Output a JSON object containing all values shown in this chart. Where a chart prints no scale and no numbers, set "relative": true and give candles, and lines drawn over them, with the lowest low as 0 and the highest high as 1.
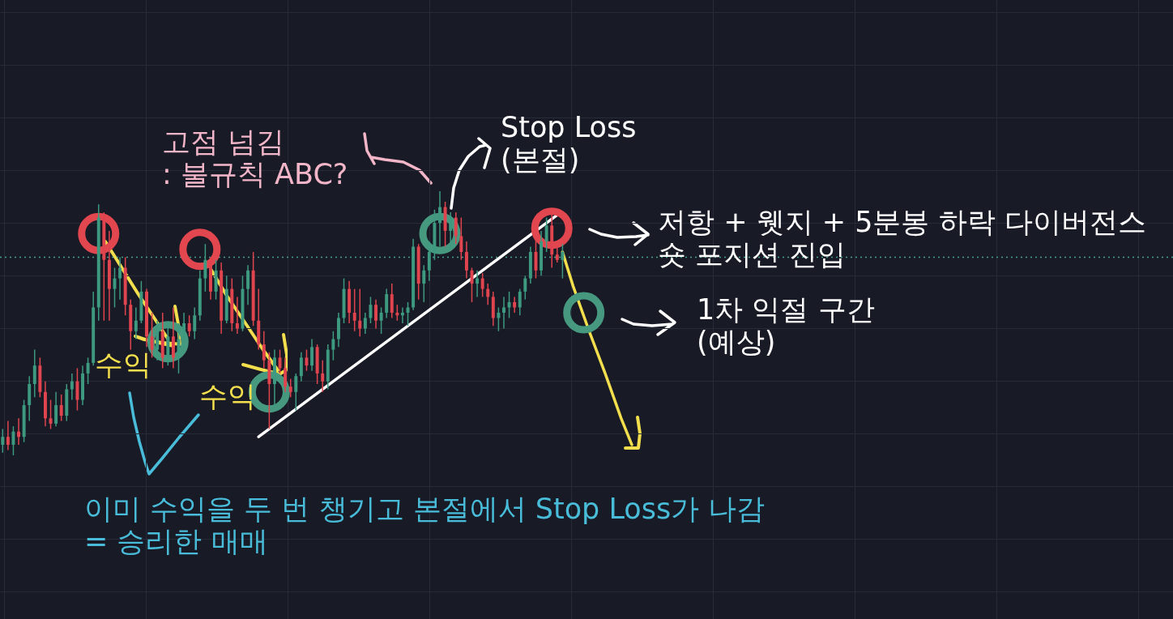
{
  "chart_data": {
    "type": "candlestick",
    "relative": true,
    "grid": true,
    "tick_labels": false,
    "categories": [
      null,
      null,
      null,
      null,
      null,
      null,
      null,
      null,
      null,
      null,
      null,
      null,
      null,
      null,
      null,
      null,
      null,
      null,
      null,
      null,
      null,
      null,
      null,
      null,
      null,
      null,
      null,
      null,
      null,
      null,
      null,
      null,
      null,
      null,
      null,
      null,
      null,
      null,
      null,
      null,
      null,
      null,
      null,
      null,
      null,
      null,
      null,
      null,
      null,
      null,
      null,
      null,
      null,
      null,
      null,
      null,
      null,
      null,
      null,
      null,
      null,
      null,
      null,
      null,
      null,
      null,
      null,
      null,
      null,
      null,
      null,
      null,
      null,
      null,
      null,
      null,
      null,
      null,
      null,
      null,
      null,
      null,
      null,
      null,
      null,
      null,
      null,
      null,
      null,
      null,
      null,
      null,
      null,
      null,
      null,
      null,
      null,
      null,
      null,
      null,
      null,
      null,
      null,
      null,
      null,
      null,
      null,
      null,
      null,
      null,
      null,
      null,
      null,
      null,
      null,
      null,
      null,
      null,
      null,
      null,
      null,
      null,
      null,
      null,
      null,
      null,
      null,
      null,
      null,
      null,
      null,
      null,
      null,
      null,
      null,
      null,
      null,
      null,
      null,
      null,
      null,
      null,
      null,
      null,
      null,
      null,
      null,
      null,
      null,
      null,
      null,
      null,
      null,
      null,
      null,
      null,
      null,
      null,
      null,
      null,
      null,
      null,
      null,
      null,
      null,
      null,
      null,
      null,
      null,
      null,
      null,
      null,
      null,
      null,
      null,
      null,
      null,
      null,
      null,
      null,
      null,
      null,
      null,
      null,
      null,
      null,
      null,
      null,
      null,
      null,
      null,
      null,
      null,
      null,
      null,
      null,
      null,
      null,
      null,
      null,
      null,
      null,
      null,
      null,
      null,
      null,
      null,
      null,
      null,
      null,
      null,
      null,
      null,
      null,
      null,
      null,
      null,
      null,
      null,
      null
    ],
    "ohlc": [
      [
        0.04,
        0.1,
        0.01,
        0.07
      ],
      [
        0.07,
        0.13,
        0.02,
        0.04
      ],
      [
        0.04,
        0.11,
        0,
        0.09
      ],
      [
        0.09,
        0.14,
        0.04,
        0.07
      ],
      [
        0.07,
        0.21,
        0.05,
        0.19
      ],
      [
        0.19,
        0.3,
        0.13,
        0.27
      ],
      [
        0.27,
        0.4,
        0.22,
        0.34
      ],
      [
        0.34,
        0.37,
        0.22,
        0.24
      ],
      [
        0.24,
        0.28,
        0.11,
        0.14
      ],
      [
        0.14,
        0.21,
        0.1,
        0.12
      ],
      [
        0.12,
        0.24,
        0.11,
        0.19
      ],
      [
        0.19,
        0.23,
        0.13,
        0.15
      ],
      [
        0.15,
        0.27,
        0.13,
        0.25
      ],
      [
        0.25,
        0.31,
        0.21,
        0.28
      ],
      [
        0.28,
        0.33,
        0.17,
        0.21
      ],
      [
        0.21,
        0.34,
        0.19,
        0.31
      ],
      [
        0.31,
        0.37,
        0.27,
        0.35
      ],
      [
        0.35,
        0.62,
        0.34,
        0.56
      ],
      [
        0.56,
        0.95,
        0.51,
        0.9
      ],
      [
        0.9,
        0.92,
        0.51,
        0.74
      ],
      [
        0.74,
        0.85,
        0.51,
        0.63
      ],
      [
        0.63,
        0.71,
        0.56,
        0.67
      ],
      [
        0.67,
        0.75,
        0.59,
        0.71
      ],
      [
        0.71,
        0.75,
        0.53,
        0.57
      ],
      [
        0.57,
        0.59,
        0.4,
        0.47
      ],
      [
        0.47,
        0.56,
        0.44,
        0.51
      ],
      [
        0.51,
        0.66,
        0.5,
        0.62
      ],
      [
        0.62,
        0.63,
        0.41,
        0.45
      ],
      [
        0.45,
        0.54,
        0.37,
        0.4
      ],
      [
        0.4,
        0.51,
        0.36,
        0.47
      ],
      [
        0.47,
        0.54,
        0.33,
        0.37
      ],
      [
        0.37,
        0.5,
        0.34,
        0.45
      ],
      [
        0.45,
        0.56,
        0.33,
        0.37
      ],
      [
        0.37,
        0.5,
        0.31,
        0.44
      ],
      [
        0.44,
        0.54,
        0.4,
        0.5
      ],
      [
        0.5,
        0.53,
        0.45,
        0.47
      ],
      [
        0.47,
        0.56,
        0.44,
        0.53
      ],
      [
        0.53,
        0.7,
        0.51,
        0.67
      ],
      [
        0.67,
        0.8,
        0.62,
        0.74
      ],
      [
        0.74,
        0.75,
        0.59,
        0.62
      ],
      [
        0.62,
        0.74,
        0.59,
        0.7
      ],
      [
        0.7,
        0.73,
        0.46,
        0.51
      ],
      [
        0.51,
        0.68,
        0.5,
        0.63
      ],
      [
        0.63,
        0.67,
        0.47,
        0.5
      ],
      [
        0.5,
        0.6,
        0.46,
        0.48
      ],
      [
        0.48,
        0.68,
        0.47,
        0.63
      ],
      [
        0.63,
        0.72,
        0.57,
        0.7
      ],
      [
        0.7,
        0.77,
        0.49,
        0.51
      ],
      [
        0.51,
        0.63,
        0.4,
        0.42
      ],
      [
        0.42,
        0.47,
        0.33,
        0.36
      ],
      [
        0.36,
        0.39,
        0.1,
        0.27
      ],
      [
        0.27,
        0.4,
        0.19,
        0.37
      ],
      [
        0.37,
        0.4,
        0.31,
        0.33
      ],
      [
        0.33,
        0.37,
        0.24,
        0.26
      ],
      [
        0.26,
        0.29,
        0.22,
        0.24
      ],
      [
        0.24,
        0.31,
        0.17,
        0.3
      ],
      [
        0.3,
        0.39,
        0.28,
        0.37
      ],
      [
        0.37,
        0.4,
        0.32,
        0.34
      ],
      [
        0.34,
        0.44,
        0.32,
        0.41
      ],
      [
        0.41,
        0.42,
        0.27,
        0.31
      ],
      [
        0.31,
        0.36,
        0.24,
        0.28
      ],
      [
        0.28,
        0.42,
        0.25,
        0.4
      ],
      [
        0.4,
        0.47,
        0.36,
        0.44
      ],
      [
        0.44,
        0.54,
        0.41,
        0.52
      ],
      [
        0.52,
        0.67,
        0.5,
        0.63
      ],
      [
        0.63,
        0.66,
        0.5,
        0.54
      ],
      [
        0.54,
        0.63,
        0.47,
        0.51
      ],
      [
        0.51,
        0.63,
        0.45,
        0.48
      ],
      [
        0.48,
        0.54,
        0.46,
        0.52
      ],
      [
        0.52,
        0.6,
        0.5,
        0.57
      ],
      [
        0.57,
        0.59,
        0.48,
        0.51
      ],
      [
        0.51,
        0.56,
        0.46,
        0.54
      ],
      [
        0.54,
        0.63,
        0.52,
        0.61
      ],
      [
        0.61,
        0.65,
        0.52,
        0.54
      ],
      [
        0.54,
        0.57,
        0.51,
        0.53
      ],
      [
        0.53,
        0.56,
        0.5,
        0.54
      ],
      [
        0.54,
        0.58,
        0.49,
        0.56
      ],
      [
        0.56,
        0.82,
        0.55,
        0.79
      ],
      [
        0.79,
        0.8,
        0.59,
        0.65
      ],
      [
        0.65,
        0.72,
        0.58,
        0.7
      ],
      [
        0.7,
        0.81,
        0.66,
        0.77
      ],
      [
        0.77,
        0.93,
        0.74,
        0.88
      ],
      [
        0.88,
        1,
        0.79,
        0.94
      ],
      [
        0.94,
        0.96,
        0.79,
        0.85
      ],
      [
        0.85,
        0.92,
        0.78,
        0.9
      ],
      [
        0.9,
        0.92,
        0.8,
        0.83
      ],
      [
        0.83,
        0.9,
        0.74,
        0.77
      ],
      [
        0.77,
        0.81,
        0.67,
        0.7
      ],
      [
        0.7,
        0.71,
        0.58,
        0.65
      ],
      [
        0.65,
        0.7,
        0.6,
        0.67
      ],
      [
        0.67,
        0.69,
        0.6,
        0.63
      ],
      [
        0.63,
        0.65,
        0.57,
        0.6
      ],
      [
        0.6,
        0.62,
        0.49,
        0.52
      ],
      [
        0.52,
        0.56,
        0.47,
        0.54
      ],
      [
        0.54,
        0.6,
        0.48,
        0.56
      ],
      [
        0.56,
        0.62,
        0.52,
        0.58
      ],
      [
        0.58,
        0.6,
        0.54,
        0.56
      ],
      [
        0.56,
        0.63,
        0.53,
        0.62
      ],
      [
        0.62,
        0.68,
        0.59,
        0.67
      ],
      [
        0.67,
        0.79,
        0.65,
        0.77
      ],
      [
        0.77,
        0.82,
        0.67,
        0.7
      ],
      [
        0.7,
        0.85,
        0.68,
        0.81
      ],
      [
        0.81,
        0.9,
        0.77,
        0.87
      ],
      [
        0.87,
        0.92,
        0.71,
        0.76
      ],
      [
        0.76,
        0.8,
        0.73,
        0.74
      ],
      [
        0.74,
        0.8,
        0.67,
        0.77
      ],
      null,
      null,
      null,
      null,
      null,
      null,
      null,
      null,
      null,
      null,
      null,
      null,
      null,
      null,
      null,
      null,
      null,
      null,
      null,
      null,
      null,
      null,
      null,
      null,
      null,
      null,
      null,
      null,
      null,
      null,
      null,
      null,
      null,
      null,
      null,
      null,
      null,
      null,
      null,
      null,
      null,
      null,
      null,
      null,
      null,
      null,
      null,
      null,
      null,
      null,
      null,
      null,
      null,
      null,
      null,
      null,
      null,
      null,
      null,
      null,
      null,
      null,
      null,
      null,
      null,
      null,
      null,
      null,
      null,
      null,
      null,
      null,
      null,
      null,
      null,
      null,
      null,
      null,
      null,
      null,
      null,
      null,
      null,
      null,
      null,
      null,
      null,
      null,
      null,
      null,
      null,
      null,
      null,
      null,
      null,
      null,
      null,
      null,
      null,
      null,
      null,
      null,
      null,
      null,
      null,
      null,
      null,
      null,
      null,
      null,
      null,
      null,
      null,
      null
    ],
    "colors": [
      "#3d9a80",
      "#e0454f",
      "#3d9a80",
      "#e0454f",
      "#3d9a80",
      "#3d9a80",
      "#3d9a80",
      "#e0454f",
      "#e0454f",
      "#e0454f",
      "#3d9a80",
      "#e0454f",
      "#3d9a80",
      "#3d9a80",
      "#e0454f",
      "#3d9a80",
      "#3d9a80",
      "#3d9a80",
      "#3d9a80",
      "#e0454f",
      "#e0454f",
      "#3d9a80",
      "#3d9a80",
      "#e0454f",
      "#e0454f",
      "#3d9a80",
      "#3d9a80",
      "#e0454f",
      "#e0454f",
      "#3d9a80",
      "#e0454f",
      "#3d9a80",
      "#e0454f",
      "#3d9a80",
      "#3d9a80",
      "#e0454f",
      "#3d9a80",
      "#3d9a80",
      "#3d9a80",
      "#e0454f",
      "#3d9a80",
      "#e0454f",
      "#3d9a80",
      "#e0454f",
      "#e0454f",
      "#3d9a80",
      "#3d9a80",
      "#e0454f",
      "#e0454f",
      "#e0454f",
      "#e0454f",
      "#3d9a80",
      "#e0454f",
      "#e0454f",
      "#e0454f",
      "#3d9a80",
      "#3d9a80",
      "#e0454f",
      "#3d9a80",
      "#e0454f",
      "#e0454f",
      "#3d9a80",
      "#3d9a80",
      "#3d9a80",
      "#3d9a80",
      "#e0454f",
      "#e0454f",
      "#e0454f",
      "#3d9a80",
      "#3d9a80",
      "#e0454f",
      "#3d9a80",
      "#3d9a80",
      "#e0454f",
      "#e0454f",
      "#3d9a80",
      "#3d9a80",
      "#3d9a80",
      "#e0454f",
      "#3d9a80",
      "#3d9a80",
      "#3d9a80",
      "#3d9a80",
      "#e0454f",
      "#3d9a80",
      "#e0454f",
      "#e0454f",
      "#e0454f",
      "#e0454f",
      "#3d9a80",
      "#e0454f",
      "#e0454f",
      "#e0454f",
      "#3d9a80",
      "#3d9a80",
      "#3d9a80",
      "#e0454f",
      "#3d9a80",
      "#3d9a80",
      "#3d9a80",
      "#e0454f",
      "#3d9a80",
      "#3d9a80",
      "#e0454f",
      "#e0454f",
      "#3d9a80",
      null,
      null,
      null,
      null,
      null,
      null,
      null,
      null,
      null,
      null,
      null,
      null,
      null,
      null,
      null,
      null,
      null,
      null,
      null,
      null,
      null,
      null,
      null,
      null,
      null,
      null,
      null,
      null,
      null,
      null,
      null,
      null,
      null,
      null,
      null,
      null,
      null,
      null,
      null,
      null,
      null,
      null,
      null,
      null,
      null,
      null,
      null,
      null,
      null,
      null,
      null,
      null,
      null,
      null,
      null,
      null,
      null,
      null,
      null,
      null,
      null,
      null,
      null,
      null,
      null,
      null,
      null,
      null,
      null,
      null,
      null,
      null,
      null,
      null,
      null,
      null,
      null,
      null,
      null,
      null,
      null,
      null,
      null,
      null,
      null,
      null,
      null,
      null,
      null,
      null,
      null,
      null,
      null,
      null,
      null,
      null,
      null,
      null,
      null,
      null,
      null,
      null,
      null,
      null,
      null,
      null,
      null,
      null,
      null,
      null,
      null,
      null,
      null,
      null
    ],
    "series": [
      {
        "type": "scatter",
        "color": "#e2474f",
        "marker": "circle",
        "values": [
          null,
          null,
          null,
          null,
          null,
          null,
          null,
          null,
          null,
          null,
          null,
          null,
          null,
          null,
          null,
          null,
          null,
          null,
          0.84,
          null,
          null,
          null,
          null,
          null,
          null,
          null,
          null,
          null,
          null,
          null,
          null,
          null,
          null,
          null,
          null,
          null,
          null,
          0.78,
          null,
          null,
          null,
          null,
          null,
          null,
          null,
          null,
          null,
          null,
          null,
          null,
          null,
          null,
          null,
          null,
          null,
          null,
          null,
          null,
          null,
          null,
          null,
          null,
          null,
          null,
          null,
          null,
          null,
          null,
          null,
          null,
          null,
          null,
          null,
          null,
          null,
          null,
          null,
          null,
          null,
          null,
          null,
          null,
          null,
          null,
          null,
          null,
          null,
          null,
          null,
          null,
          null,
          null,
          null,
          null,
          null,
          null,
          null,
          null,
          null,
          null,
          null,
          null,
          null,
          0.86,
          null,
          null,
          null,
          null,
          null,
          null,
          null,
          null,
          null,
          null,
          null,
          null,
          null,
          null,
          null,
          null,
          null,
          null,
          null,
          null,
          null,
          null,
          null,
          null,
          null,
          null,
          null,
          null,
          null,
          null,
          null,
          null,
          null,
          null,
          null,
          null,
          null,
          null,
          null,
          null,
          null,
          null,
          null,
          null,
          null,
          null,
          null,
          null,
          null,
          null,
          null,
          null,
          null,
          null,
          null,
          null,
          null,
          null,
          null,
          null,
          null,
          null,
          null,
          null,
          null,
          null,
          null,
          null,
          null,
          null,
          null,
          null,
          null,
          null,
          null,
          null,
          null,
          null,
          null,
          null,
          null,
          null,
          null,
          null,
          null,
          null,
          null,
          null,
          null,
          null,
          null,
          null,
          null,
          null,
          null,
          null,
          null,
          null,
          null,
          null,
          null,
          null,
          null,
          null,
          null,
          null,
          null,
          null,
          null,
          null,
          null,
          null,
          null,
          null,
          null,
          null
        ]
      },
      {
        "type": "scatter",
        "color": "#46997f",
        "marker": "circle",
        "values": [
          null,
          null,
          null,
          null,
          null,
          null,
          null,
          null,
          null,
          null,
          null,
          null,
          null,
          null,
          null,
          null,
          null,
          null,
          null,
          null,
          null,
          null,
          null,
          null,
          null,
          null,
          null,
          null,
          null,
          null,
          null,
          0.43,
          null,
          null,
          null,
          null,
          null,
          null,
          null,
          null,
          null,
          null,
          null,
          null,
          null,
          null,
          null,
          null,
          null,
          null,
          0.24,
          null,
          null,
          null,
          null,
          null,
          null,
          null,
          null,
          null,
          null,
          null,
          null,
          null,
          null,
          null,
          null,
          null,
          null,
          null,
          null,
          null,
          null,
          null,
          null,
          null,
          null,
          null,
          null,
          null,
          null,
          null,
          0.84,
          null,
          null,
          null,
          null,
          null,
          null,
          null,
          null,
          null,
          null,
          null,
          null,
          null,
          null,
          null,
          null,
          null,
          null,
          null,
          null,
          null,
          null,
          null,
          null,
          null,
          null,
          0.54,
          null,
          null,
          null,
          null,
          null,
          null,
          null,
          null,
          null,
          null,
          null,
          null,
          null,
          null,
          null,
          null,
          null,
          null,
          null,
          null,
          null,
          null,
          null,
          null,
          null,
          null,
          null,
          null,
          null,
          null,
          null,
          null,
          null,
          null,
          null,
          null,
          null,
          null,
          null,
          null,
          null,
          null,
          null,
          null,
          null,
          null,
          null,
          null,
          null,
          null,
          null,
          null,
          null,
          null,
          null,
          null,
          null,
          null,
          null,
          null,
          null,
          null,
          null,
          null,
          null,
          null,
          null,
          null,
          null,
          null,
          null,
          null,
          null,
          null,
          null,
          null,
          null,
          null,
          null,
          null,
          null,
          null,
          null,
          null,
          null,
          null,
          null,
          null,
          null,
          null,
          null,
          null,
          null,
          null,
          null,
          null,
          null,
          null,
          null,
          null,
          null,
          null,
          null,
          null,
          null,
          null,
          null,
          null,
          null,
          null
        ]
      },
      {
        "type": "line",
        "color": "#ffffff",
        "line_style": "solid",
        "values": [
          null,
          null,
          null,
          null,
          null,
          null,
          null,
          null,
          null,
          null,
          null,
          null,
          null,
          null,
          null,
          null,
          null,
          null,
          null,
          null,
          null,
          null,
          null,
          null,
          null,
          null,
          null,
          null,
          null,
          null,
          null,
          null,
          null,
          null,
          null,
          null,
          null,
          null,
          null,
          null,
          null,
          null,
          null,
          null,
          null,
          null,
          null,
          null,
          0.07,
          null,
          null,
          null,
          null,
          null,
          null,
          null,
          null,
          null,
          null,
          null,
          null,
          null,
          null,
          null,
          null,
          null,
          null,
          null,
          null,
          null,
          null,
          null,
          null,
          null,
          null,
          null,
          null,
          null,
          null,
          null,
          null,
          null,
          null,
          null,
          null,
          null,
          null,
          null,
          null,
          null,
          null,
          null,
          null,
          null,
          null,
          null,
          null,
          null,
          null,
          null,
          null,
          null,
          null,
          null,
          0.91,
          null,
          null,
          null,
          null,
          null,
          null,
          null,
          null,
          null,
          null,
          null,
          null,
          null,
          null,
          null,
          null,
          null,
          null,
          null,
          null,
          null,
          null,
          null,
          null,
          null,
          null,
          null,
          null,
          null,
          null,
          null,
          null,
          null,
          null,
          null,
          null,
          null,
          null,
          null,
          null,
          null,
          null,
          null,
          null,
          null,
          null,
          null,
          null,
          null,
          null,
          null,
          null,
          null,
          null,
          null,
          null,
          null,
          null,
          null,
          null,
          null,
          null,
          null,
          null,
          null,
          null,
          null,
          null,
          null,
          null,
          null,
          null,
          null,
          null,
          null,
          null,
          null,
          null,
          null,
          null,
          null,
          null,
          null,
          null,
          null,
          null,
          null,
          null,
          null,
          null,
          null,
          null,
          null,
          null,
          null,
          null,
          null,
          null,
          null,
          null,
          null,
          null,
          null,
          null,
          null,
          null,
          null,
          null,
          null,
          null,
          null,
          null,
          null,
          null,
          null
        ]
      },
      {
        "type": "line",
        "color": "#f3df4d",
        "line_style": "solid",
        "values": [
          null,
          null,
          null,
          null,
          null,
          null,
          null,
          null,
          null,
          null,
          null,
          null,
          null,
          null,
          null,
          null,
          null,
          null,
          null,
          null,
          null,
          null,
          null,
          null,
          null,
          null,
          null,
          null,
          null,
          null,
          null,
          null,
          null,
          null,
          null,
          null,
          null,
          null,
          null,
          null,
          null,
          null,
          null,
          null,
          null,
          null,
          null,
          null,
          null,
          null,
          null,
          null,
          null,
          null,
          null,
          null,
          null,
          null,
          null,
          null,
          null,
          null,
          null,
          null,
          null,
          null,
          null,
          null,
          null,
          null,
          null,
          null,
          null,
          null,
          null,
          null,
          null,
          null,
          null,
          null,
          null,
          null,
          null,
          null,
          null,
          null,
          null,
          null,
          null,
          null,
          null,
          null,
          null,
          null,
          null,
          null,
          null,
          null,
          null,
          null,
          null,
          null,
          null,
          null,
          null,
          0.77,
          null,
          0.64,
          null,
          null,
          0.47,
          null,
          null,
          0.31,
          null,
          null,
          0.14,
          null,
          0.04,
          null,
          null,
          null,
          null,
          null,
          null,
          null,
          null,
          null,
          null,
          null,
          null,
          null,
          null,
          null,
          null,
          null,
          null,
          null,
          null,
          null,
          null,
          null,
          null,
          null,
          null,
          null,
          null,
          null,
          null,
          null,
          null,
          null,
          null,
          null,
          null,
          null,
          null,
          null,
          null,
          null,
          null,
          null,
          null,
          null,
          null,
          null,
          null,
          null,
          null,
          null,
          null,
          null,
          null,
          null,
          null,
          null,
          null,
          null,
          null,
          null,
          null,
          null,
          null,
          null,
          null,
          null,
          null,
          null,
          null,
          null,
          null,
          null,
          null,
          null,
          null,
          null,
          null,
          null,
          null,
          null,
          null,
          null,
          null,
          null,
          null,
          null,
          null,
          null,
          null,
          null,
          null,
          null,
          null,
          null,
          null,
          null,
          null,
          null,
          null,
          null
        ]
      }
    ],
    "ref_lines": [
      {
        "axis": "y",
        "value": 0.75,
        "color": "#4a9e8a",
        "line_style": "dotted"
      }
    ],
    "annotations": [
      "고점 넘김\n: 불규칙 ABC?",
      "Stop Loss\n(본절)",
      "저항 + 웻지 + 5분봉 하락 다이버전스\n숏 포지션 진입",
      "1차 익절 구간\n(예상)",
      "수익",
      "수익",
      "이미 수익을 두 번 챙기고 본절에서 Stop Loss가 나감\n= 승리한 매매"
    ]
  }
}
